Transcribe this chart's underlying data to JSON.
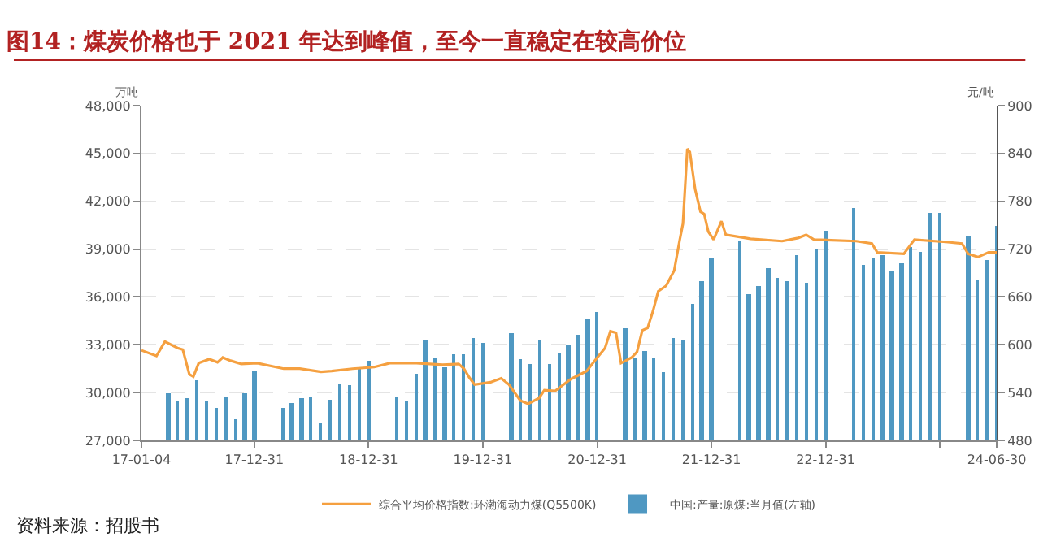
{
  "chart_data": {
    "type": "bar",
    "title": "图14：煤炭价格也于 2021 年达到峰值，至今一直稳定在较高价位",
    "ylabel": "万吨",
    "y2label": "元/吨",
    "series": [
      {
        "name": "综合平均价格指数:环渤海动力煤(Q5500K)",
        "type": "line",
        "axis": "y2",
        "color": "#f5a040",
        "x": [
          "2017-01-04",
          "2017-02-21",
          "2017-03-20",
          "2017-04-29",
          "2017-05-16",
          "2017-06-06",
          "2017-06-19",
          "2017-07-06",
          "2017-08-09",
          "2017-09-04",
          "2017-09-21",
          "2017-10-16",
          "2017-11-19",
          "2018-01-09",
          "2018-04-04",
          "2018-05-25",
          "2018-08-01",
          "2018-09-04",
          "2018-11-10",
          "2019-01-18",
          "2019-03-09",
          "2019-06-02",
          "2019-08-25",
          "2019-10-15",
          "2019-11-01",
          "2019-11-18",
          "2019-12-05",
          "2020-01-25",
          "2020-02-28",
          "2020-03-24",
          "2020-04-29",
          "2020-05-24",
          "2020-06-28",
          "2020-07-15",
          "2020-08-18",
          "2020-10-08",
          "2020-11-27",
          "2020-12-23",
          "2021-01-25",
          "2021-02-11",
          "2021-03-01",
          "2021-03-17",
          "2021-04-20",
          "2021-05-07",
          "2021-05-24",
          "2021-06-10",
          "2021-06-27",
          "2021-07-14",
          "2021-08-08",
          "2021-09-03",
          "2021-09-20",
          "2021-10-01",
          "2021-10-15",
          "2021-10-23",
          "2021-11-09",
          "2021-11-26",
          "2021-12-08",
          "2021-12-21",
          "2022-01-07",
          "2022-02-01",
          "2022-02-15",
          "2022-05-05",
          "2022-08-14",
          "2022-10-04",
          "2022-10-30",
          "2022-11-24",
          "2023-04-08",
          "2023-05-28",
          "2023-06-14",
          "2023-09-07",
          "2023-10-11",
          "2024-01-20",
          "2024-03-11",
          "2024-03-31",
          "2024-05-01",
          "2024-06-04",
          "2024-06-30"
        ],
        "values": [
          593,
          586,
          604,
          596,
          594,
          563,
          560,
          577,
          582,
          578,
          584,
          580,
          576,
          577,
          570,
          570,
          566,
          567,
          570,
          572,
          577,
          577,
          575,
          576,
          570,
          559,
          550,
          553,
          558,
          550,
          530,
          526,
          533,
          543,
          542,
          557,
          567,
          580,
          596,
          617,
          615,
          577,
          584,
          591,
          618,
          621,
          642,
          667,
          674,
          693,
          730,
          752,
          846,
          842,
          795,
          767,
          764,
          742,
          732,
          755,
          738,
          733,
          730,
          734,
          738,
          732,
          730,
          727,
          716,
          714,
          732,
          729,
          727,
          714,
          710,
          716,
          716
        ]
      },
      {
        "name": "中国:产量:原煤:当月值(左轴)",
        "axis": "y",
        "color": "#4f98c2",
        "x": [
          "2017-03-31",
          "2017-04-30",
          "2017-05-31",
          "2017-06-30",
          "2017-07-31",
          "2017-08-31",
          "2017-09-30",
          "2017-10-31",
          "2017-11-30",
          "2017-12-31",
          "2018-03-31",
          "2018-04-30",
          "2018-05-31",
          "2018-06-30",
          "2018-07-31",
          "2018-08-31",
          "2018-09-30",
          "2018-10-31",
          "2018-11-30",
          "2018-12-31",
          "2019-03-31",
          "2019-04-30",
          "2019-05-31",
          "2019-06-30",
          "2019-07-31",
          "2019-08-31",
          "2019-09-30",
          "2019-10-31",
          "2019-11-30",
          "2019-12-31",
          "2020-03-31",
          "2020-04-30",
          "2020-05-31",
          "2020-06-30",
          "2020-07-31",
          "2020-08-31",
          "2020-09-30",
          "2020-10-31",
          "2020-11-30",
          "2020-12-31",
          "2021-03-31",
          "2021-04-30",
          "2021-05-31",
          "2021-06-30",
          "2021-07-31",
          "2021-08-31",
          "2021-09-30",
          "2021-10-31",
          "2021-11-30",
          "2021-12-31",
          "2022-03-31",
          "2022-04-30",
          "2022-05-31",
          "2022-06-30",
          "2022-07-31",
          "2022-08-31",
          "2022-09-30",
          "2022-10-31",
          "2022-11-30",
          "2022-12-31",
          "2023-03-31",
          "2023-04-30",
          "2023-05-31",
          "2023-06-30",
          "2023-07-31",
          "2023-08-31",
          "2023-09-30",
          "2023-10-31",
          "2023-11-30",
          "2023-12-31",
          "2024-03-31",
          "2024-04-30",
          "2024-05-31",
          "2024-06-30"
        ],
        "values": [
          30000,
          29400,
          29700,
          30800,
          29400,
          29000,
          29800,
          28300,
          30000,
          31400,
          29000,
          29300,
          29700,
          29800,
          28100,
          29600,
          30600,
          30500,
          31500,
          32000,
          29800,
          29400,
          31200,
          33300,
          32200,
          31600,
          32400,
          32400,
          33400,
          33100,
          33700,
          32100,
          31800,
          33300,
          31800,
          32500,
          33000,
          33600,
          34600,
          35100,
          34000,
          32200,
          32600,
          32200,
          31300,
          33400,
          33300,
          35600,
          37000,
          38400,
          39500,
          36200,
          36700,
          37800,
          37200,
          37000,
          38600,
          36900,
          39000,
          40200,
          41600,
          38000,
          38400,
          38600,
          37600,
          38100,
          39100,
          38800,
          41300,
          41300,
          39800,
          37100,
          38300,
          40500
        ]
      }
    ],
    "xlim": [
      "2017-01-04",
      "2024-06-30"
    ],
    "xticks": [
      {
        "value": "2017-01-04",
        "label": "17-01-04"
      },
      {
        "value": "2017-12-31",
        "label": "17-12-31"
      },
      {
        "value": "2018-12-31",
        "label": "18-12-31"
      },
      {
        "value": "2019-12-31",
        "label": "19-12-31"
      },
      {
        "value": "2020-12-31",
        "label": "20-12-31"
      },
      {
        "value": "2021-12-31",
        "label": "21-12-31"
      },
      {
        "value": "2022-12-31",
        "label": "22-12-31"
      },
      {
        "value": "2023-12-31",
        "label": null
      },
      {
        "value": "2024-06-30",
        "label": "24-06-30"
      }
    ],
    "ylim": [
      27000,
      48000
    ],
    "yticks": [
      {
        "value": 27000,
        "label": "27,000"
      },
      {
        "value": 30000,
        "label": "30,000"
      },
      {
        "value": 33000,
        "label": "33,000"
      },
      {
        "value": 36000,
        "label": "36,000"
      },
      {
        "value": 39000,
        "label": "39,000"
      },
      {
        "value": 42000,
        "label": "42,000"
      },
      {
        "value": 45000,
        "label": "45,000"
      },
      {
        "value": 48000,
        "label": "48,000"
      }
    ],
    "y2lim": [
      480,
      900
    ],
    "y2ticks": [
      480,
      540,
      600,
      660,
      720,
      780,
      840,
      900
    ],
    "grid": "y",
    "legend": "bottom",
    "annotations": [
      "资料来源：招股书"
    ]
  }
}
